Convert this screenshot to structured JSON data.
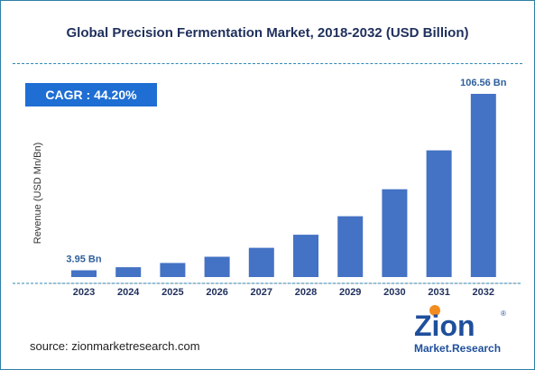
{
  "title": "Global Precision Fermentation Market, 2018-2032 (USD Billion)",
  "cagr_label": "CAGR : 44.20%",
  "source": "source: zionmarketresearch.com",
  "logo": {
    "line1": "Zion",
    "line2": "Market.Research",
    "registered": "®"
  },
  "colors": {
    "bar": "#4472c4",
    "accent": "#1e6ed3",
    "title": "#1f2f5c",
    "frame": "#2f7fa6"
  },
  "chart_data": {
    "type": "bar",
    "title": "Global Precision Fermentation Market, 2018-2032 (USD Billion)",
    "xlabel": "",
    "ylabel": "Revenue (USD Mn/Bn)",
    "categories": [
      "2023",
      "2024",
      "2025",
      "2026",
      "2027",
      "2028",
      "2029",
      "2030",
      "2031",
      "2032"
    ],
    "series": [
      {
        "values": [
          3.95,
          5.7,
          8.2,
          11.8,
          17.0,
          24.6,
          35.4,
          51.1,
          73.7,
          106.56
        ]
      }
    ],
    "data_labels": {
      "0": "3.95 Bn",
      "9": "106.56 Bn"
    },
    "ylim": [
      0,
      106.56
    ],
    "grid": false
  }
}
